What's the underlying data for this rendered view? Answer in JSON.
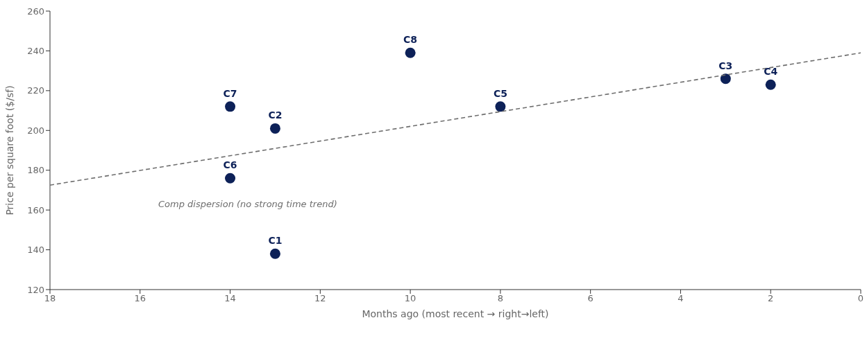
{
  "chart_data": {
    "type": "scatter",
    "xlabel": "Months ago (most recent → right→left)",
    "ylabel": "Price per square foot ($/sf)",
    "xlim": [
      18,
      0
    ],
    "xticks": [
      18,
      16,
      14,
      12,
      10,
      8,
      6,
      4,
      2,
      0
    ],
    "ylim": [
      120,
      260
    ],
    "yticks": [
      120,
      140,
      160,
      180,
      200,
      220,
      240,
      260
    ],
    "grid": false,
    "legend": false,
    "marker": "circle",
    "series": [
      {
        "type": "scatter",
        "color": "#0d2158",
        "x": [
          13,
          13,
          3,
          2,
          8,
          14,
          14,
          10
        ],
        "values": [
          138,
          201,
          226,
          223,
          212,
          176,
          212,
          239
        ]
      },
      {
        "type": "line",
        "color": "#6e6e6e",
        "line_style": "dashed",
        "marker": "none",
        "x": [
          18,
          0
        ],
        "values": [
          172.5,
          239
        ]
      }
    ],
    "annotations": [
      {
        "text": "C1",
        "x": 13,
        "y": 138
      },
      {
        "text": "C2",
        "x": 13,
        "y": 201
      },
      {
        "text": "C3",
        "x": 3,
        "y": 226
      },
      {
        "text": "C4",
        "x": 2,
        "y": 223
      },
      {
        "text": "C5",
        "x": 8,
        "y": 212
      },
      {
        "text": "C6",
        "x": 14,
        "y": 176
      },
      {
        "text": "C7",
        "x": 14,
        "y": 212
      },
      {
        "text": "C8",
        "x": 10,
        "y": 239
      },
      "Comp dispersion (no strong time trend)"
    ]
  }
}
